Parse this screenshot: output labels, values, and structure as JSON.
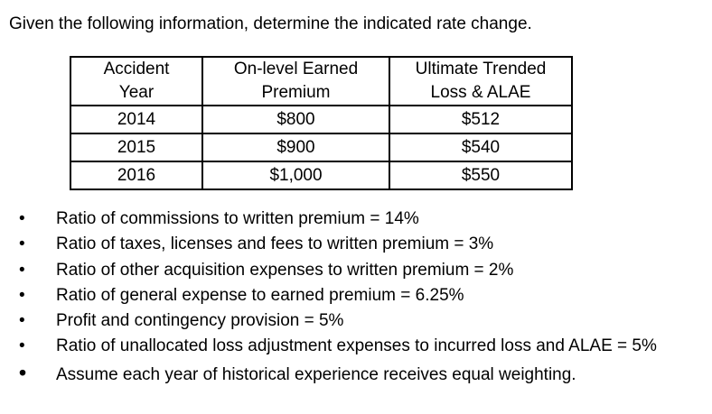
{
  "title": "Given the following information, determine the indicated rate change.",
  "colors": {
    "text": "#000000",
    "background": "#ffffff",
    "table_border": "#000000"
  },
  "table": {
    "headers": [
      [
        "Accident",
        "Year"
      ],
      [
        "On-level Earned",
        "Premium"
      ],
      [
        "Ultimate Trended",
        "Loss & ALAE"
      ]
    ],
    "rows": [
      [
        "2014",
        "$800",
        "$512"
      ],
      [
        "2015",
        "$900",
        "$540"
      ],
      [
        "2016",
        "$1,000",
        "$550"
      ]
    ]
  },
  "bullets": [
    "Ratio of commissions to written premium = 14%",
    "Ratio of taxes, licenses and fees to written premium = 3%",
    "Ratio of other acquisition expenses to written premium = 2%",
    "Ratio of general expense to earned premium = 6.25%",
    "Profit and contingency provision = 5%",
    "Ratio of unallocated loss adjustment expenses to incurred loss and ALAE = 5%",
    "Assume each year of historical experience receives equal weighting."
  ]
}
